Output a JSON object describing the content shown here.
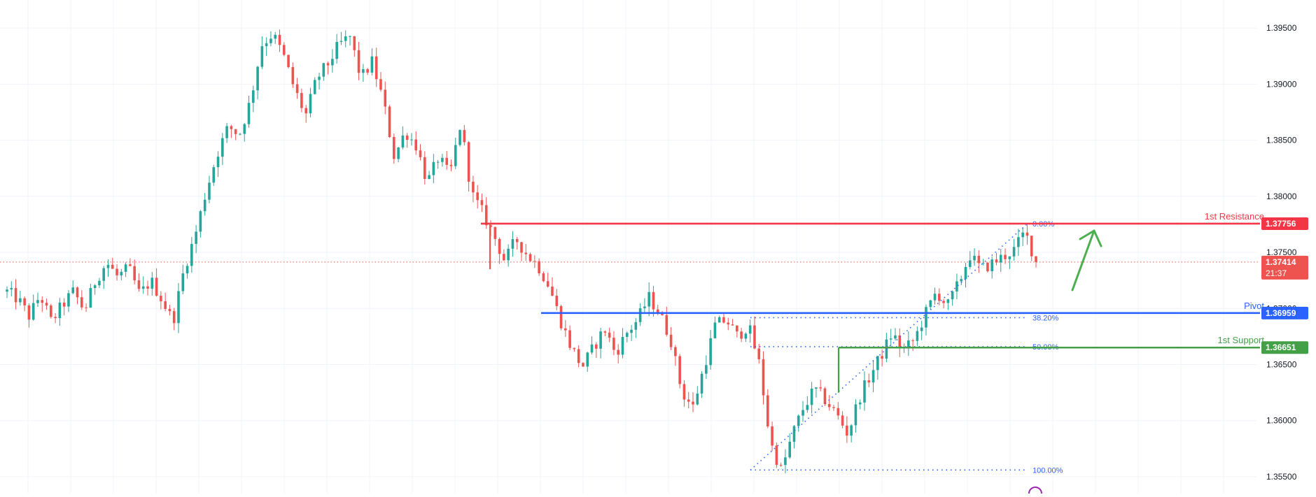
{
  "chart_data": {
    "type": "candlestick",
    "title": "",
    "xlabel": "",
    "ylabel": "",
    "ylim": [
      1.3535,
      1.3975
    ],
    "y_ticks": [
      "1.39500",
      "1.39000",
      "1.38500",
      "1.38000",
      "1.37500",
      "1.37000",
      "1.36500",
      "1.36000",
      "1.35500"
    ],
    "grid": true,
    "colors": {
      "up": "#26a69a",
      "down": "#ef5350",
      "resistance": "#f23645",
      "pivot": "#2962ff",
      "support": "#43a047",
      "arrow": "#4caf50",
      "fib": "#2962ff"
    },
    "current_price": {
      "value": 1.37414,
      "label": "1.37414",
      "countdown": "21:37"
    },
    "levels": [
      {
        "name": "1st Resistance",
        "value": 1.37756,
        "label": "1.37756",
        "color": "#f23645"
      },
      {
        "name": "Pivot",
        "value": 1.36959,
        "label": "1.36959",
        "color": "#2962ff"
      },
      {
        "name": "1st Support",
        "value": 1.36651,
        "label": "1.36651",
        "color": "#43a047"
      }
    ],
    "fibonacci": [
      {
        "label": "0.00%",
        "value": 1.37756
      },
      {
        "label": "38.20%",
        "value": 1.36918
      },
      {
        "label": "50.00%",
        "value": 1.36659
      },
      {
        "label": "100.00%",
        "value": 1.3556
      }
    ],
    "price_path": [
      1.3715,
      1.3708,
      1.3693,
      1.3712,
      1.3688,
      1.3703,
      1.3715,
      1.3698,
      1.3725,
      1.3741,
      1.3728,
      1.3736,
      1.3712,
      1.3725,
      1.3708,
      1.3688,
      1.3735,
      1.3765,
      1.3805,
      1.3838,
      1.3862,
      1.3855,
      1.3885,
      1.3935,
      1.3945,
      1.3925,
      1.3895,
      1.3872,
      1.3905,
      1.3918,
      1.3935,
      1.3942,
      1.3905,
      1.392,
      1.3885,
      1.3835,
      1.3858,
      1.3845,
      1.3812,
      1.3835,
      1.3818,
      1.3865,
      1.3802,
      1.3785,
      1.3765,
      1.3742,
      1.3762,
      1.3748,
      1.3738,
      1.372,
      1.369,
      1.3665,
      1.3648,
      1.3665,
      1.3682,
      1.366,
      1.3678,
      1.369,
      1.371,
      1.3695,
      1.3672,
      1.3625,
      1.3612,
      1.3648,
      1.3685,
      1.369,
      1.3675,
      1.3685,
      1.365,
      1.358,
      1.3555,
      1.3588,
      1.3612,
      1.3628,
      1.3618,
      1.3605,
      1.3588,
      1.362,
      1.364,
      1.3658,
      1.3678,
      1.3662,
      1.3672,
      1.3695,
      1.3715,
      1.3702,
      1.3722,
      1.3748,
      1.3735,
      1.374,
      1.3746,
      1.3752,
      1.3768,
      1.3742
    ]
  }
}
